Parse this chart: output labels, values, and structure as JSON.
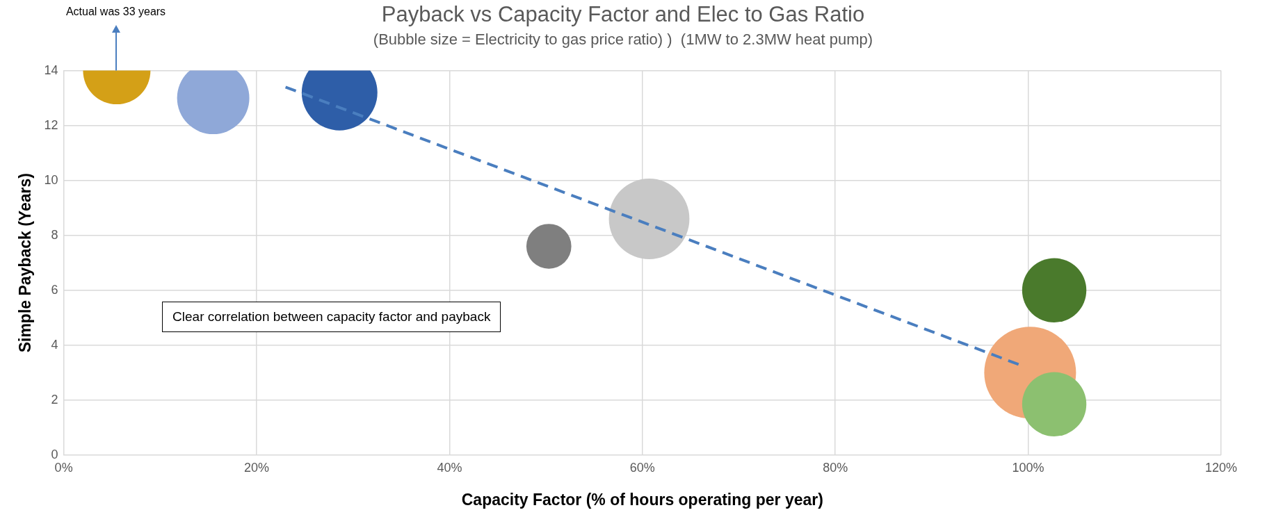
{
  "chart_data": {
    "type": "bubble",
    "title": "Payback vs Capacity Factor and Elec to Gas Ratio",
    "subtitle": "(Bubble size = Electricity to gas price ratio) )  (1MW to 2.3MW heat pump)",
    "xlabel": "Capacity Factor (% of hours operating per year)",
    "ylabel": "Simple Payback (Years)",
    "xlim": [
      0,
      120
    ],
    "xticks": [
      {
        "value": 0,
        "label": "0%"
      },
      {
        "value": 20,
        "label": "20%"
      },
      {
        "value": 40,
        "label": "40%"
      },
      {
        "value": 60,
        "label": "60%"
      },
      {
        "value": 80,
        "label": "80%"
      },
      {
        "value": 100,
        "label": "100%"
      },
      {
        "value": 120,
        "label": "120%"
      }
    ],
    "ylim": [
      0,
      14
    ],
    "yticks": [
      0,
      2,
      4,
      6,
      8,
      10,
      12,
      14
    ],
    "grid": true,
    "legend": false,
    "series": [
      {
        "x": [
          5.5,
          15.5,
          28.6,
          50.3,
          60.7,
          102.7,
          100.2,
          102.7
        ],
        "values": [
          14,
          13.0,
          13.2,
          7.6,
          8.6,
          6.0,
          3.0,
          1.85
        ],
        "sizes": [
          0.54,
          0.62,
          0.68,
          0.24,
          0.77,
          0.49,
          1,
          0.49
        ],
        "colors": [
          "#d4a017",
          "#8fa8d8",
          "#2e5ea8",
          "#7f7f7f",
          "#c8c8c8",
          "#4a7a2c",
          "#f0a878",
          "#8cc070"
        ]
      },
      {
        "type": "line",
        "x": [
          23,
          99
        ],
        "values": [
          13.4,
          3.3
        ],
        "color": "#4a7ebf",
        "line_style": "dashed",
        "marker": "none"
      }
    ],
    "annotations": [
      "Actual was 33 years",
      "Clear correlation between capacity factor and payback"
    ]
  }
}
